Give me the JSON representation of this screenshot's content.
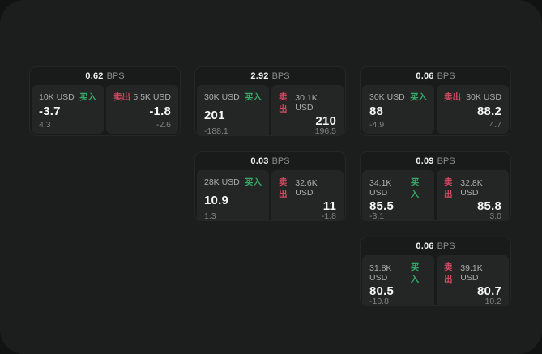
{
  "labels": {
    "buy": "买入",
    "sell": "卖出",
    "bps_unit": "BPS"
  },
  "colors": {
    "buy": "#35a968",
    "sell": "#cf4a60",
    "window_bg": "#1c1d1d",
    "card_bg": "#191a1a",
    "panel_bg": "#242525"
  },
  "cards": [
    {
      "row": 1,
      "col": 1,
      "bps": "0.62",
      "buy": {
        "amount": "10K USD",
        "value": "-3.7",
        "change": "4.3"
      },
      "sell": {
        "amount": "5.5K USD",
        "value": "-1.8",
        "change": "-2.6"
      }
    },
    {
      "row": 1,
      "col": 2,
      "bps": "2.92",
      "buy": {
        "amount": "30K USD",
        "value": "201",
        "change": "-188.1"
      },
      "sell": {
        "amount": "30.1K USD",
        "value": "210",
        "change": "196.5"
      }
    },
    {
      "row": 1,
      "col": 3,
      "bps": "0.06",
      "buy": {
        "amount": "30K USD",
        "value": "88",
        "change": "-4.9"
      },
      "sell": {
        "amount": "30K USD",
        "value": "88.2",
        "change": "4.7"
      }
    },
    {
      "row": 2,
      "col": 2,
      "bps": "0.03",
      "buy": {
        "amount": "28K USD",
        "value": "10.9",
        "change": "1.3"
      },
      "sell": {
        "amount": "32.6K USD",
        "value": "11",
        "change": "-1.8"
      }
    },
    {
      "row": 2,
      "col": 3,
      "bps": "0.09",
      "buy": {
        "amount": "34.1K USD",
        "value": "85.5",
        "change": "-3.1"
      },
      "sell": {
        "amount": "32.8K USD",
        "value": "85.8",
        "change": "3.0"
      }
    },
    {
      "row": 3,
      "col": 3,
      "bps": "0.06",
      "buy": {
        "amount": "31.8K USD",
        "value": "80.5",
        "change": "-10.8"
      },
      "sell": {
        "amount": "39.1K USD",
        "value": "80.7",
        "change": "10.2"
      }
    }
  ]
}
